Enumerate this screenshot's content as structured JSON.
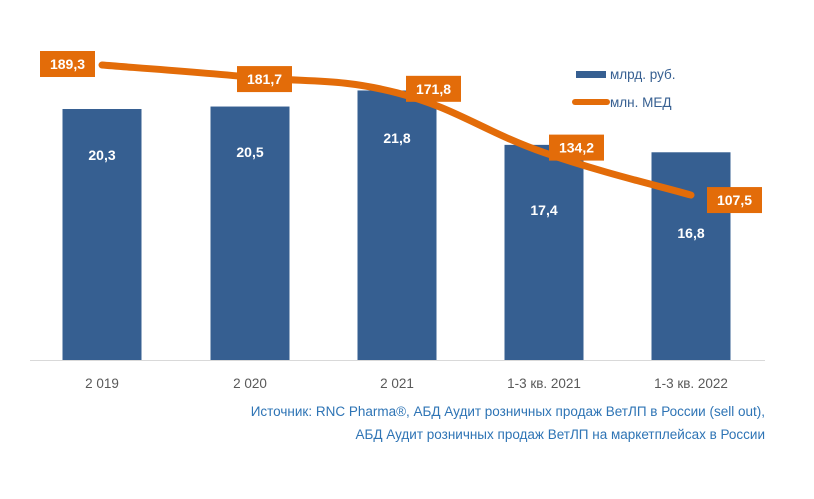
{
  "chart_data": {
    "type": "bar+line",
    "categories": [
      "2 019",
      "2 020",
      "2 021",
      "1-3 кв. 2021",
      "1-3 кв. 2022"
    ],
    "series": [
      {
        "name": "млрд. руб.",
        "type": "bar",
        "axis": "primary",
        "color": "#365F91",
        "values": [
          20.3,
          20.5,
          21.8,
          17.4,
          16.8
        ],
        "labels": [
          "20,3",
          "20,5",
          "21,8",
          "17,4",
          "16,8"
        ]
      },
      {
        "name": "млн. МЕД",
        "type": "line",
        "axis": "secondary",
        "color": "#E36C09",
        "values": [
          189.3,
          181.7,
          171.8,
          134.2,
          107.5
        ],
        "labels": [
          "189,3",
          "181,7",
          "171,8",
          "134,2",
          "107,5"
        ]
      }
    ],
    "ylim_primary": [
      0,
      29
    ],
    "grid": false,
    "legend_placement": "top-right",
    "source_lines": [
      "Источник: RNC Pharma®, АБД Аудит розничных продаж ВетЛП в России (sell out),",
      "АБД Аудит розничных продаж ВетЛП на маркетплейсах в России"
    ]
  }
}
